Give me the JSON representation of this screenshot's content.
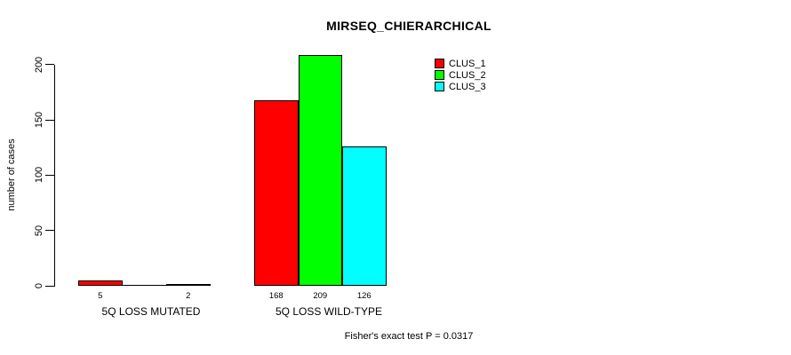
{
  "chart_data": {
    "type": "bar",
    "title": "MIRSEQ_CHIERARCHICAL",
    "ylabel": "number of cases",
    "xlabel": "",
    "categories": [
      "5Q LOSS MUTATED",
      "5Q LOSS WILD-TYPE"
    ],
    "series": [
      {
        "name": "CLUS_1",
        "color": "#ff0000",
        "values": [
          5,
          168
        ]
      },
      {
        "name": "CLUS_2",
        "color": "#00ff00",
        "values": [
          0,
          209
        ]
      },
      {
        "name": "CLUS_3",
        "color": "#00ffff",
        "values": [
          2,
          126
        ]
      }
    ],
    "bar_value_labels": [
      [
        "5",
        "",
        "2"
      ],
      [
        "168",
        "209",
        "126"
      ]
    ],
    "yticks": [
      0,
      50,
      100,
      150,
      200
    ],
    "ylim": [
      0,
      209
    ],
    "grid": false,
    "legend_position": "top-right",
    "legend_entries": [
      "CLUS_1",
      "CLUS_2",
      "CLUS_3"
    ],
    "annotation": "Fisher's exact test P = 0.0317"
  }
}
